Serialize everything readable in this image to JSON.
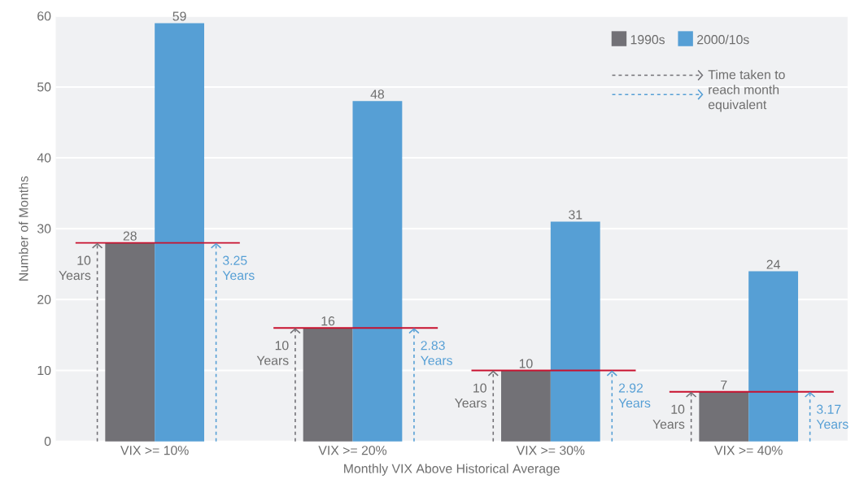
{
  "chart_data": {
    "type": "bar",
    "xlabel": "Monthly VIX Above Historical Average",
    "ylabel": "Number of Months",
    "categories": [
      "VIX >= 10%",
      "VIX >= 20%",
      "VIX >= 30%",
      "VIX >= 40%"
    ],
    "series": [
      {
        "name": "1990s",
        "color": "#727176",
        "values": [
          28,
          16,
          10,
          7
        ]
      },
      {
        "name": "2000/10s",
        "color": "#569fd5",
        "values": [
          59,
          48,
          31,
          24
        ]
      }
    ],
    "ylim": [
      0,
      60
    ],
    "yticks": [
      0,
      10,
      20,
      30,
      40,
      50,
      60
    ],
    "grid": "y",
    "legend": "top right",
    "data_labels": true,
    "ref_lines": [
      {
        "axis": "y",
        "value": 28,
        "color": "#c8102e"
      },
      {
        "axis": "y",
        "value": 16,
        "color": "#c8102e"
      },
      {
        "axis": "y",
        "value": 10,
        "color": "#c8102e"
      },
      {
        "axis": "y",
        "value": 7,
        "color": "#c8102e"
      }
    ],
    "annotations": [
      {
        "text": "10 Years",
        "y": 28
      },
      {
        "text": "3.25 Years",
        "y": 28
      },
      {
        "text": "10 Years",
        "y": 16
      },
      {
        "text": "2.83 Years",
        "y": 16
      },
      {
        "text": "10 Years",
        "y": 10
      },
      {
        "text": "2.92 Years",
        "y": 10
      },
      {
        "text": "10 Years",
        "y": 7
      },
      {
        "text": "3.17 Years",
        "y": 7
      },
      "Time taken to reach month equivalent"
    ]
  }
}
